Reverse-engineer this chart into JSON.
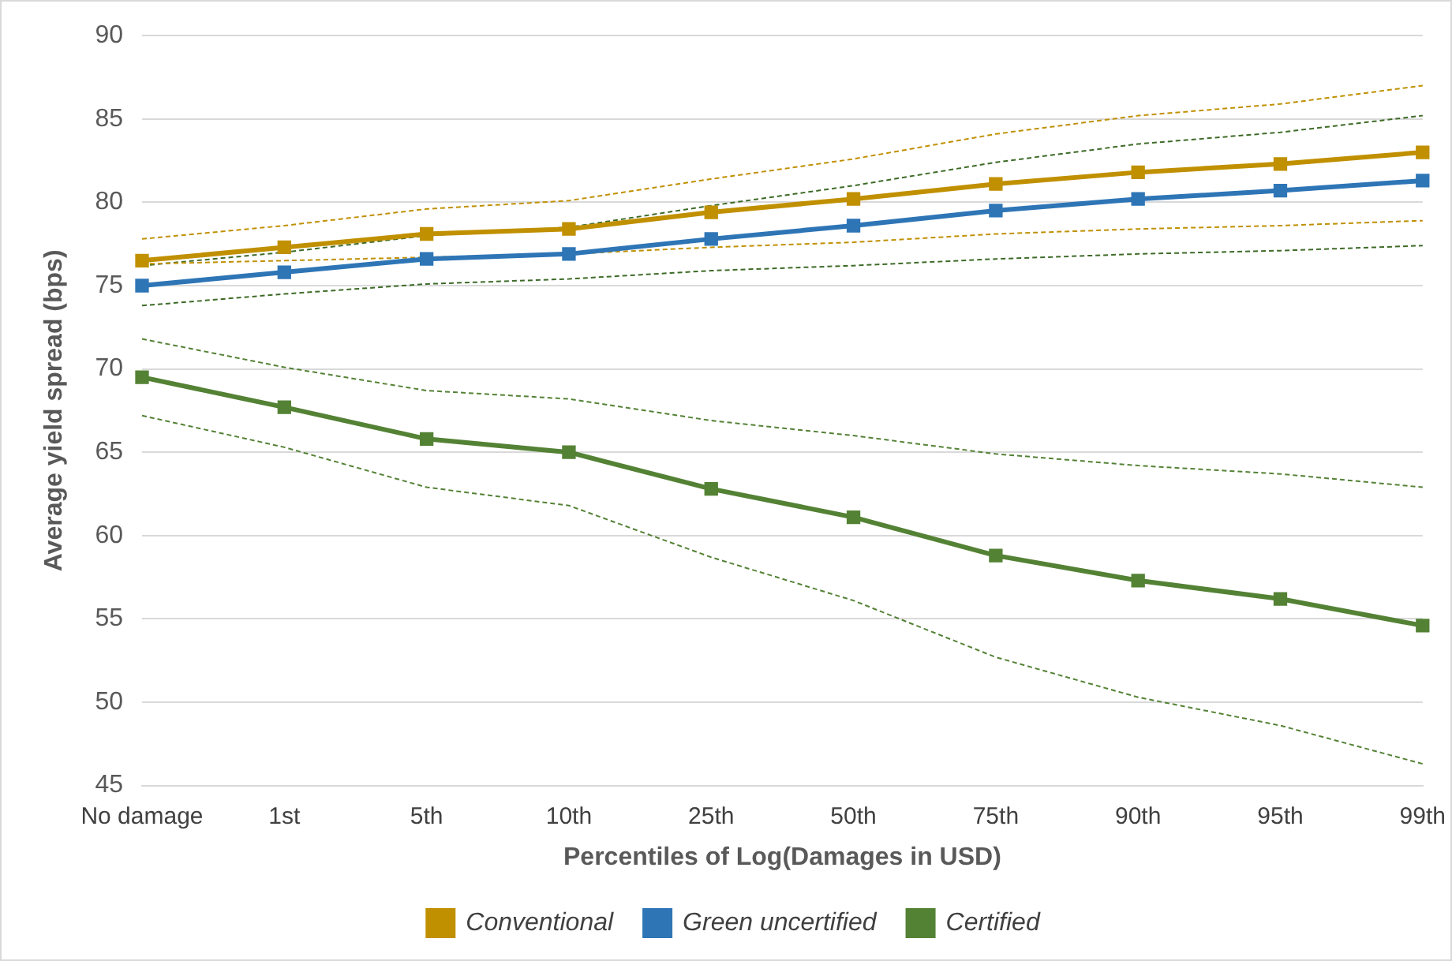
{
  "chart_data": {
    "type": "line",
    "xlabel": "Percentiles of Log(Damages in USD)",
    "ylabel": "Average yield spread (bps)",
    "categories": [
      "No damage",
      "1st",
      "5th",
      "10th",
      "25th",
      "50th",
      "75th",
      "90th",
      "95th",
      "99th"
    ],
    "ylim": [
      45,
      90
    ],
    "yticks": [
      45,
      50,
      55,
      60,
      65,
      70,
      75,
      80,
      85,
      90
    ],
    "grid": "y",
    "legend": "bottom",
    "marker": "square",
    "line_style": "solid",
    "series": [
      {
        "name": "Conventional",
        "color": "#c09000",
        "values": [
          76.5,
          77.3,
          78.1,
          78.4,
          79.4,
          80.2,
          81.1,
          81.8,
          82.3,
          83.0
        ]
      },
      {
        "name": "Green uncertified",
        "color": "#2e75b6",
        "values": [
          75.0,
          75.8,
          76.6,
          76.9,
          77.8,
          78.6,
          79.5,
          80.2,
          80.7,
          81.3
        ]
      },
      {
        "name": "Certified",
        "color": "#548235",
        "values": [
          69.5,
          67.7,
          65.8,
          65.0,
          62.8,
          61.1,
          58.8,
          57.3,
          56.2,
          54.6
        ]
      },
      {
        "color": "#c09000",
        "line_style": "dashed",
        "marker": "none",
        "values": [
          76.3,
          76.5,
          76.7,
          76.9,
          77.3,
          77.6,
          78.1,
          78.4,
          78.6,
          78.9
        ]
      },
      {
        "color": "#c09000",
        "line_style": "dashed",
        "marker": "none",
        "values": [
          77.8,
          78.6,
          79.6,
          80.1,
          81.4,
          82.6,
          84.1,
          85.2,
          85.9,
          87.0
        ]
      },
      {
        "color": "#3d6b27",
        "line_style": "dashed",
        "marker": "none",
        "values": [
          73.8,
          74.5,
          75.1,
          75.4,
          75.9,
          76.2,
          76.6,
          76.9,
          77.1,
          77.4
        ]
      },
      {
        "color": "#3d6b27",
        "line_style": "dashed",
        "marker": "none",
        "values": [
          76.2,
          77.0,
          78.0,
          78.5,
          79.8,
          81.0,
          82.4,
          83.5,
          84.2,
          85.2
        ]
      },
      {
        "color": "#548235",
        "line_style": "dashed",
        "marker": "none",
        "values": [
          67.2,
          65.3,
          62.9,
          61.8,
          58.7,
          56.1,
          52.7,
          50.3,
          48.6,
          46.3
        ]
      },
      {
        "color": "#548235",
        "line_style": "dashed",
        "marker": "none",
        "values": [
          71.8,
          70.1,
          68.7,
          68.2,
          66.9,
          66.0,
          64.9,
          64.2,
          63.7,
          62.9
        ]
      }
    ]
  }
}
